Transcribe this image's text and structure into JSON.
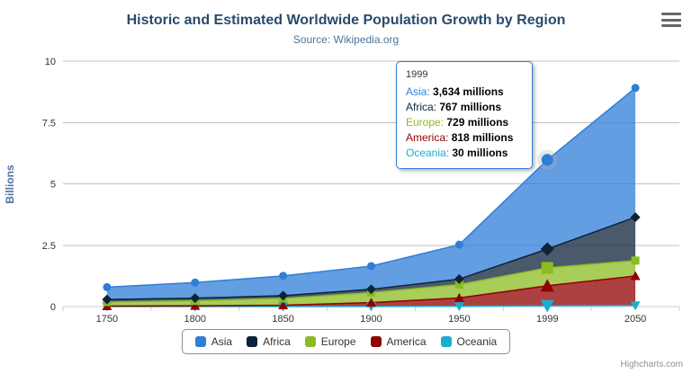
{
  "header": {
    "title": "Historic and Estimated Worldwide Population Growth by Region",
    "subtitle": "Source: Wikipedia.org"
  },
  "credits": {
    "label": "Highcharts.com"
  },
  "tooltip": {
    "header": "1999",
    "rows": [
      {
        "name": "Asia",
        "value": "3,634 millions"
      },
      {
        "name": "Africa",
        "value": "767 millions"
      },
      {
        "name": "Europe",
        "value": "729 millions"
      },
      {
        "name": "America",
        "value": "818 millions"
      },
      {
        "name": "Oceania",
        "value": "30 millions"
      }
    ]
  },
  "chart_data": {
    "type": "area",
    "stacking": "normal",
    "title": "Historic and Estimated Worldwide Population Growth by Region",
    "subtitle": "Source: Wikipedia.org",
    "unit": "millions",
    "categories": [
      "1750",
      "1800",
      "1850",
      "1900",
      "1950",
      "1999",
      "2050"
    ],
    "series": [
      {
        "name": "Asia",
        "color": "#2f7ed8",
        "marker": "circle",
        "values": [
          502,
          635,
          809,
          947,
          1402,
          3634,
          5268
        ]
      },
      {
        "name": "Africa",
        "color": "#0d233a",
        "marker": "diamond",
        "values": [
          106,
          107,
          111,
          133,
          221,
          767,
          1766
        ]
      },
      {
        "name": "Europe",
        "color": "#8bbc21",
        "marker": "square",
        "values": [
          163,
          203,
          276,
          408,
          547,
          729,
          628
        ]
      },
      {
        "name": "America",
        "color": "#910000",
        "marker": "triangle",
        "values": [
          18,
          31,
          54,
          156,
          339,
          818,
          1201
        ]
      },
      {
        "name": "Oceania",
        "color": "#1aadce",
        "marker": "triangle-down",
        "values": [
          2,
          2,
          2,
          6,
          13,
          30,
          46
        ]
      }
    ],
    "ylabel": "Billions",
    "xlabel": "",
    "ylim": [
      0,
      10
    ],
    "y_ticks": [
      0,
      2.5,
      5,
      7.5,
      10
    ],
    "y_tick_labels": [
      "0",
      "2.5",
      "5",
      "7.5",
      "10"
    ],
    "grid": true,
    "legend_position": "bottom",
    "hovered_category": "1999",
    "hovered_index": 5
  }
}
